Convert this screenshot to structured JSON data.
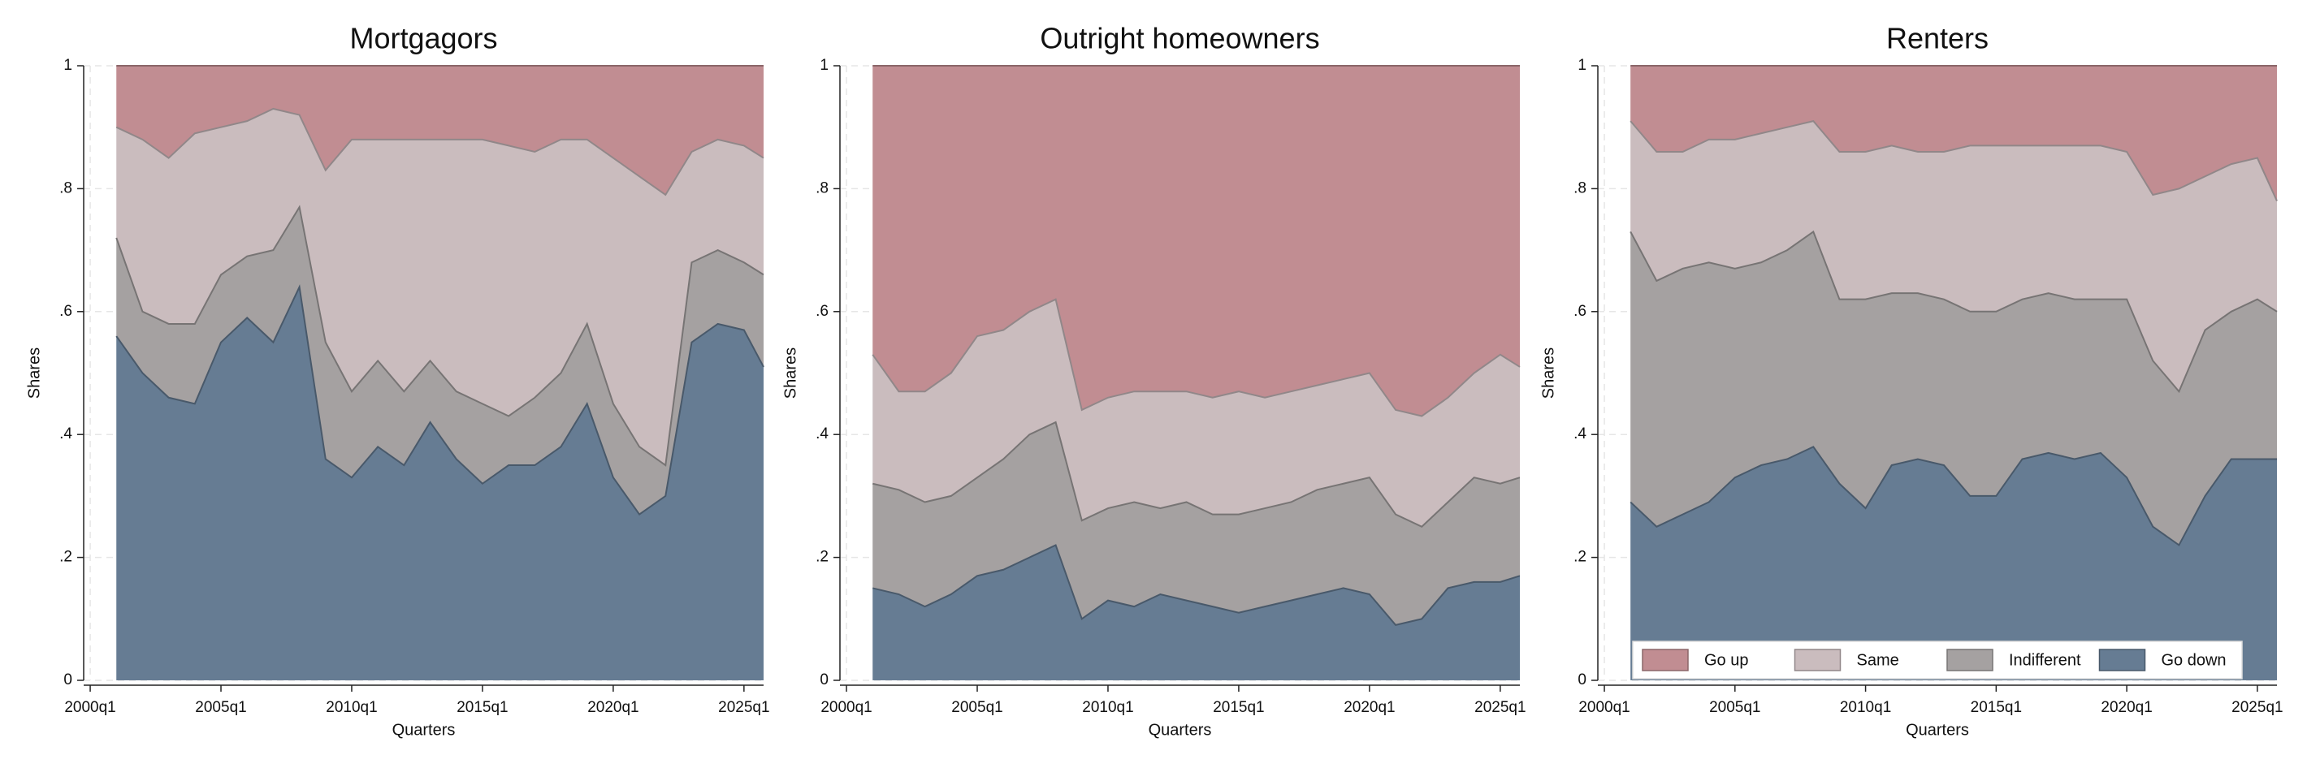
{
  "chart_data": [
    {
      "type": "area",
      "title": "Mortgagors",
      "xlabel": "Quarters",
      "ylabel": "Shares",
      "stacked": true,
      "grid": true,
      "x": [
        2001,
        2002,
        2003,
        2004,
        2005,
        2006,
        2007,
        2008,
        2009,
        2010,
        2011,
        2012,
        2013,
        2014,
        2015,
        2016,
        2017,
        2018,
        2019,
        2020,
        2021,
        2022,
        2023,
        2024,
        2025,
        2025.75
      ],
      "xlim": [
        1999.75,
        2025.75
      ],
      "xticks": [
        {
          "value": 2000,
          "label": "2000q1"
        },
        {
          "value": 2005,
          "label": "2005q1"
        },
        {
          "value": 2010,
          "label": "2010q1"
        },
        {
          "value": 2015,
          "label": "2015q1"
        },
        {
          "value": 2020,
          "label": "2020q1"
        },
        {
          "value": 2025,
          "label": "2025q1"
        }
      ],
      "ylim": [
        0,
        1
      ],
      "yticks": [
        0,
        {
          "value": 0.2,
          "label": ".2"
        },
        {
          "value": 0.4,
          "label": ".4"
        },
        {
          "value": 0.6,
          "label": ".6"
        },
        {
          "value": 0.8,
          "label": ".8"
        },
        1
      ],
      "series": [
        {
          "color": "#c18d92",
          "values": [
            0.1,
            0.12,
            0.15,
            0.11,
            0.1,
            0.09,
            0.07,
            0.08,
            0.17,
            0.12,
            0.12,
            0.12,
            0.12,
            0.12,
            0.12,
            0.13,
            0.14,
            0.12,
            0.12,
            0.15,
            0.18,
            0.21,
            0.14,
            0.12,
            0.13,
            0.15
          ]
        },
        {
          "color": "#cabcbe",
          "values": [
            0.18,
            0.28,
            0.27,
            0.31,
            0.24,
            0.22,
            0.23,
            0.15,
            0.28,
            0.41,
            0.36,
            0.41,
            0.36,
            0.41,
            0.43,
            0.44,
            0.4,
            0.38,
            0.3,
            0.4,
            0.44,
            0.44,
            0.18,
            0.18,
            0.19,
            0.19
          ]
        },
        {
          "color": "#a5a1a1",
          "values": [
            0.16,
            0.1,
            0.12,
            0.13,
            0.11,
            0.1,
            0.15,
            0.13,
            0.19,
            0.14,
            0.14,
            0.12,
            0.1,
            0.11,
            0.13,
            0.08,
            0.11,
            0.12,
            0.13,
            0.12,
            0.11,
            0.05,
            0.13,
            0.12,
            0.11,
            0.15
          ]
        },
        {
          "color": "#667c93",
          "values": [
            0.56,
            0.5,
            0.46,
            0.45,
            0.55,
            0.59,
            0.55,
            0.64,
            0.36,
            0.33,
            0.38,
            0.35,
            0.42,
            0.36,
            0.32,
            0.35,
            0.35,
            0.38,
            0.45,
            0.33,
            0.27,
            0.3,
            0.55,
            0.58,
            0.57,
            0.51
          ]
        }
      ]
    },
    {
      "type": "area",
      "title": "Outright homeowners",
      "xlabel": "Quarters",
      "ylabel": "Shares",
      "stacked": true,
      "grid": true,
      "x": [
        2001,
        2002,
        2003,
        2004,
        2005,
        2006,
        2007,
        2008,
        2009,
        2010,
        2011,
        2012,
        2013,
        2014,
        2015,
        2016,
        2017,
        2018,
        2019,
        2020,
        2021,
        2022,
        2023,
        2024,
        2025,
        2025.75
      ],
      "xlim": [
        1999.75,
        2025.75
      ],
      "xticks": [
        {
          "value": 2000,
          "label": "2000q1"
        },
        {
          "value": 2005,
          "label": "2005q1"
        },
        {
          "value": 2010,
          "label": "2010q1"
        },
        {
          "value": 2015,
          "label": "2015q1"
        },
        {
          "value": 2020,
          "label": "2020q1"
        },
        {
          "value": 2025,
          "label": "2025q1"
        }
      ],
      "ylim": [
        0,
        1
      ],
      "yticks": [
        0,
        {
          "value": 0.2,
          "label": ".2"
        },
        {
          "value": 0.4,
          "label": ".4"
        },
        {
          "value": 0.6,
          "label": ".6"
        },
        {
          "value": 0.8,
          "label": ".8"
        },
        1
      ],
      "series": [
        {
          "color": "#c18d92",
          "values": [
            0.47,
            0.53,
            0.53,
            0.5,
            0.44,
            0.43,
            0.4,
            0.38,
            0.56,
            0.54,
            0.53,
            0.53,
            0.53,
            0.54,
            0.53,
            0.54,
            0.53,
            0.52,
            0.51,
            0.5,
            0.56,
            0.57,
            0.54,
            0.5,
            0.47,
            0.49
          ]
        },
        {
          "color": "#cabcbe",
          "values": [
            0.21,
            0.16,
            0.18,
            0.2,
            0.23,
            0.21,
            0.2,
            0.2,
            0.18,
            0.18,
            0.18,
            0.19,
            0.18,
            0.19,
            0.2,
            0.18,
            0.18,
            0.17,
            0.17,
            0.17,
            0.17,
            0.18,
            0.17,
            0.17,
            0.21,
            0.18
          ]
        },
        {
          "color": "#a5a1a1",
          "values": [
            0.17,
            0.17,
            0.17,
            0.16,
            0.16,
            0.18,
            0.2,
            0.2,
            0.16,
            0.15,
            0.17,
            0.14,
            0.16,
            0.15,
            0.16,
            0.16,
            0.16,
            0.17,
            0.17,
            0.19,
            0.18,
            0.15,
            0.14,
            0.17,
            0.16,
            0.16
          ]
        },
        {
          "color": "#667c93",
          "values": [
            0.15,
            0.14,
            0.12,
            0.14,
            0.17,
            0.18,
            0.2,
            0.22,
            0.1,
            0.13,
            0.12,
            0.14,
            0.13,
            0.12,
            0.11,
            0.12,
            0.13,
            0.14,
            0.15,
            0.14,
            0.09,
            0.1,
            0.15,
            0.16,
            0.16,
            0.17
          ]
        }
      ]
    },
    {
      "type": "area",
      "title": "Renters",
      "xlabel": "Quarters",
      "ylabel": "Shares",
      "stacked": true,
      "grid": true,
      "legend": "lower center",
      "x": [
        2001,
        2002,
        2003,
        2004,
        2005,
        2006,
        2007,
        2008,
        2009,
        2010,
        2011,
        2012,
        2013,
        2014,
        2015,
        2016,
        2017,
        2018,
        2019,
        2020,
        2021,
        2022,
        2023,
        2024,
        2025,
        2025.75
      ],
      "xlim": [
        1999.75,
        2025.75
      ],
      "xticks": [
        {
          "value": 2000,
          "label": "2000q1"
        },
        {
          "value": 2005,
          "label": "2005q1"
        },
        {
          "value": 2010,
          "label": "2010q1"
        },
        {
          "value": 2015,
          "label": "2015q1"
        },
        {
          "value": 2020,
          "label": "2020q1"
        },
        {
          "value": 2025,
          "label": "2025q1"
        }
      ],
      "ylim": [
        0,
        1
      ],
      "yticks": [
        0,
        {
          "value": 0.2,
          "label": ".2"
        },
        {
          "value": 0.4,
          "label": ".4"
        },
        {
          "value": 0.6,
          "label": ".6"
        },
        {
          "value": 0.8,
          "label": ".8"
        },
        1
      ],
      "series": [
        {
          "name": "Go up",
          "color": "#c18d92",
          "values": [
            0.09,
            0.14,
            0.14,
            0.12,
            0.12,
            0.11,
            0.1,
            0.09,
            0.14,
            0.14,
            0.13,
            0.14,
            0.14,
            0.13,
            0.13,
            0.13,
            0.13,
            0.13,
            0.13,
            0.14,
            0.21,
            0.2,
            0.18,
            0.16,
            0.15,
            0.22
          ]
        },
        {
          "name": "Same",
          "color": "#cabcbe",
          "values": [
            0.18,
            0.21,
            0.19,
            0.2,
            0.21,
            0.21,
            0.2,
            0.18,
            0.24,
            0.24,
            0.24,
            0.23,
            0.24,
            0.27,
            0.27,
            0.25,
            0.24,
            0.25,
            0.25,
            0.24,
            0.27,
            0.33,
            0.25,
            0.24,
            0.23,
            0.18
          ]
        },
        {
          "name": "Indifferent",
          "color": "#a5a1a1",
          "values": [
            0.44,
            0.4,
            0.4,
            0.39,
            0.34,
            0.33,
            0.34,
            0.35,
            0.3,
            0.34,
            0.28,
            0.27,
            0.27,
            0.3,
            0.3,
            0.26,
            0.26,
            0.26,
            0.25,
            0.29,
            0.27,
            0.25,
            0.27,
            0.24,
            0.26,
            0.24
          ]
        },
        {
          "name": "Go down",
          "color": "#667c93",
          "values": [
            0.29,
            0.25,
            0.27,
            0.29,
            0.33,
            0.35,
            0.36,
            0.38,
            0.32,
            0.28,
            0.35,
            0.36,
            0.35,
            0.3,
            0.3,
            0.36,
            0.37,
            0.36,
            0.37,
            0.33,
            0.25,
            0.22,
            0.3,
            0.36,
            0.36,
            0.36
          ]
        }
      ]
    }
  ]
}
